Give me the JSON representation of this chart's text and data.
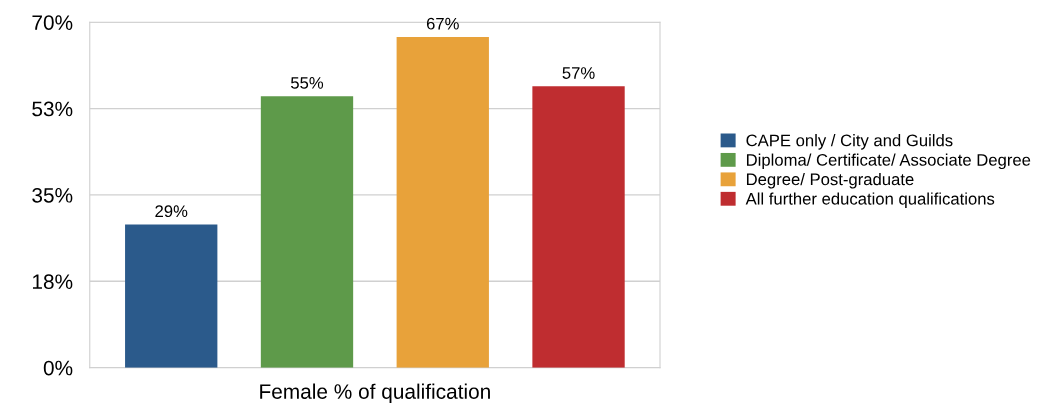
{
  "chart_data": {
    "type": "bar",
    "xlabel": "Female % of qualification",
    "categories": [
      null,
      null,
      null,
      null
    ],
    "series": [
      {
        "name": "CAPE only / City and Guilds",
        "color": "#2b5a8b",
        "values": [
          29,
          null,
          null,
          null
        ]
      },
      {
        "name": "Diploma/ Certificate/ Associate Degree",
        "color": "#5e9a4a",
        "values": [
          null,
          55,
          null,
          null
        ]
      },
      {
        "name": "Degree/ Post-graduate",
        "color": "#e8a23a",
        "values": [
          null,
          null,
          67,
          null
        ]
      },
      {
        "name": "All further education qualifications",
        "color": "#bf2d30",
        "values": [
          null,
          null,
          null,
          57
        ]
      }
    ],
    "value_labels": [
      "29%",
      "55%",
      "67%",
      "57%"
    ],
    "ylim": [
      0,
      70
    ],
    "yticks": [
      {
        "value": 0,
        "label": "0%"
      },
      {
        "value": 17.5,
        "label": "18%"
      },
      {
        "value": 35,
        "label": "35%"
      },
      {
        "value": 52.5,
        "label": "53%"
      },
      {
        "value": 70,
        "label": "70%"
      }
    ],
    "grid": "y",
    "legend": "right"
  }
}
